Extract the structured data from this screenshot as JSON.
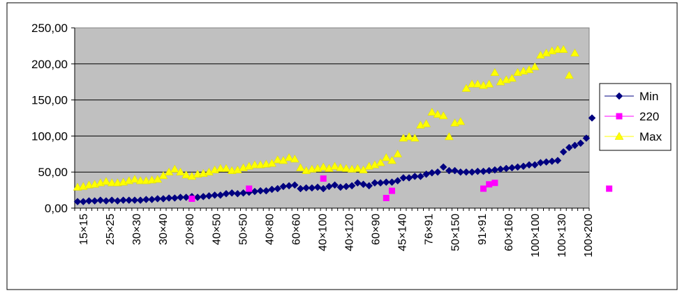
{
  "chart_data": {
    "type": "scatter",
    "ylim": [
      0,
      250
    ],
    "y_ticks": [
      "0,00",
      "50,00",
      "100,00",
      "150,00",
      "200,00",
      "250,00"
    ],
    "x_tick_labels": [
      "15×15",
      "25×25",
      "30×30",
      "30×40",
      "20×80",
      "40×50",
      "50×50",
      "40×80",
      "60×60",
      "40×100",
      "40×120",
      "60×90",
      "45×140",
      "76×91",
      "50×150",
      "91×91",
      "60×160",
      "100×100",
      "100×130",
      "100×200"
    ],
    "grid": true,
    "legend": "right",
    "colors": {
      "plot_bg": "#c0c0c0",
      "Min": "#000080",
      "220": "#ff00ff",
      "Max": "#ffff00"
    },
    "series": [
      {
        "name": "Min",
        "marker": "diamond",
        "points": [
          [
            0,
            9
          ],
          [
            1,
            9
          ],
          [
            2,
            10
          ],
          [
            3,
            10
          ],
          [
            4,
            11
          ],
          [
            5,
            10
          ],
          [
            6,
            11
          ],
          [
            7,
            10
          ],
          [
            8,
            11
          ],
          [
            9,
            11
          ],
          [
            10,
            11
          ],
          [
            11,
            11
          ],
          [
            12,
            12
          ],
          [
            13,
            12
          ],
          [
            14,
            13
          ],
          [
            15,
            13
          ],
          [
            16,
            14
          ],
          [
            17,
            14
          ],
          [
            18,
            15
          ],
          [
            19,
            15
          ],
          [
            20,
            16
          ],
          [
            21,
            15
          ],
          [
            22,
            16
          ],
          [
            23,
            17
          ],
          [
            24,
            18
          ],
          [
            25,
            18
          ],
          [
            26,
            20
          ],
          [
            27,
            21
          ],
          [
            28,
            20
          ],
          [
            29,
            21
          ],
          [
            30,
            22
          ],
          [
            31,
            23
          ],
          [
            32,
            24
          ],
          [
            33,
            24
          ],
          [
            34,
            26
          ],
          [
            35,
            27
          ],
          [
            36,
            30
          ],
          [
            37,
            31
          ],
          [
            38,
            32
          ],
          [
            39,
            27
          ],
          [
            40,
            28
          ],
          [
            41,
            28
          ],
          [
            42,
            29
          ],
          [
            43,
            27
          ],
          [
            44,
            30
          ],
          [
            45,
            32
          ],
          [
            46,
            29
          ],
          [
            47,
            30
          ],
          [
            48,
            31
          ],
          [
            49,
            35
          ],
          [
            50,
            33
          ],
          [
            51,
            31
          ],
          [
            52,
            35
          ],
          [
            53,
            35
          ],
          [
            54,
            36
          ],
          [
            55,
            36
          ],
          [
            56,
            38
          ],
          [
            57,
            42
          ],
          [
            58,
            42
          ],
          [
            59,
            44
          ],
          [
            60,
            44
          ],
          [
            61,
            47
          ],
          [
            62,
            49
          ],
          [
            63,
            50
          ],
          [
            64,
            57
          ],
          [
            65,
            52
          ],
          [
            66,
            52
          ],
          [
            67,
            50
          ],
          [
            68,
            50
          ],
          [
            69,
            50
          ],
          [
            70,
            51
          ],
          [
            71,
            51
          ],
          [
            72,
            52
          ],
          [
            73,
            53
          ],
          [
            74,
            54
          ],
          [
            75,
            55
          ],
          [
            76,
            56
          ],
          [
            77,
            57
          ],
          [
            78,
            58
          ],
          [
            79,
            60
          ],
          [
            80,
            60
          ],
          [
            81,
            63
          ],
          [
            82,
            64
          ],
          [
            83,
            65
          ],
          [
            84,
            66
          ],
          [
            85,
            78
          ],
          [
            86,
            84
          ],
          [
            87,
            87
          ],
          [
            88,
            90
          ],
          [
            89,
            97
          ],
          [
            90,
            125
          ]
        ]
      },
      {
        "name": "220",
        "marker": "square",
        "points": [
          [
            20,
            13
          ],
          [
            30,
            27
          ],
          [
            43,
            41
          ],
          [
            54,
            14
          ],
          [
            55,
            24
          ],
          [
            71,
            27
          ],
          [
            72,
            33
          ],
          [
            73,
            35
          ],
          [
            93,
            27
          ]
        ]
      },
      {
        "name": "Max",
        "marker": "triangle",
        "points": [
          [
            0,
            29
          ],
          [
            1,
            30
          ],
          [
            2,
            32
          ],
          [
            3,
            33
          ],
          [
            4,
            35
          ],
          [
            5,
            37
          ],
          [
            6,
            35
          ],
          [
            7,
            35
          ],
          [
            8,
            36
          ],
          [
            9,
            38
          ],
          [
            10,
            40
          ],
          [
            11,
            38
          ],
          [
            12,
            38
          ],
          [
            13,
            39
          ],
          [
            14,
            40
          ],
          [
            15,
            45
          ],
          [
            16,
            50
          ],
          [
            17,
            54
          ],
          [
            18,
            50
          ],
          [
            19,
            46
          ],
          [
            20,
            44
          ],
          [
            21,
            47
          ],
          [
            22,
            48
          ],
          [
            23,
            50
          ],
          [
            24,
            53
          ],
          [
            25,
            55
          ],
          [
            26,
            55
          ],
          [
            27,
            52
          ],
          [
            28,
            53
          ],
          [
            29,
            56
          ],
          [
            30,
            58
          ],
          [
            31,
            60
          ],
          [
            32,
            60
          ],
          [
            33,
            61
          ],
          [
            34,
            62
          ],
          [
            35,
            67
          ],
          [
            36,
            66
          ],
          [
            37,
            70
          ],
          [
            38,
            68
          ],
          [
            39,
            56
          ],
          [
            40,
            52
          ],
          [
            41,
            54
          ],
          [
            42,
            55
          ],
          [
            43,
            57
          ],
          [
            44,
            55
          ],
          [
            45,
            58
          ],
          [
            46,
            56
          ],
          [
            47,
            55
          ],
          [
            48,
            54
          ],
          [
            49,
            55
          ],
          [
            50,
            53
          ],
          [
            51,
            58
          ],
          [
            52,
            60
          ],
          [
            53,
            63
          ],
          [
            54,
            70
          ],
          [
            55,
            66
          ],
          [
            56,
            75
          ],
          [
            57,
            97
          ],
          [
            58,
            99
          ],
          [
            59,
            97
          ],
          [
            60,
            115
          ],
          [
            61,
            117
          ],
          [
            62,
            133
          ],
          [
            63,
            130
          ],
          [
            64,
            128
          ],
          [
            65,
            99
          ],
          [
            66,
            118
          ],
          [
            67,
            120
          ],
          [
            68,
            166
          ],
          [
            69,
            172
          ],
          [
            70,
            172
          ],
          [
            71,
            170
          ],
          [
            72,
            172
          ],
          [
            73,
            188
          ],
          [
            74,
            175
          ],
          [
            75,
            178
          ],
          [
            76,
            180
          ],
          [
            77,
            188
          ],
          [
            78,
            190
          ],
          [
            79,
            192
          ],
          [
            80,
            196
          ],
          [
            81,
            212
          ],
          [
            82,
            215
          ],
          [
            83,
            218
          ],
          [
            84,
            220
          ],
          [
            85,
            220
          ],
          [
            86,
            184
          ],
          [
            87,
            215
          ]
        ]
      }
    ]
  }
}
